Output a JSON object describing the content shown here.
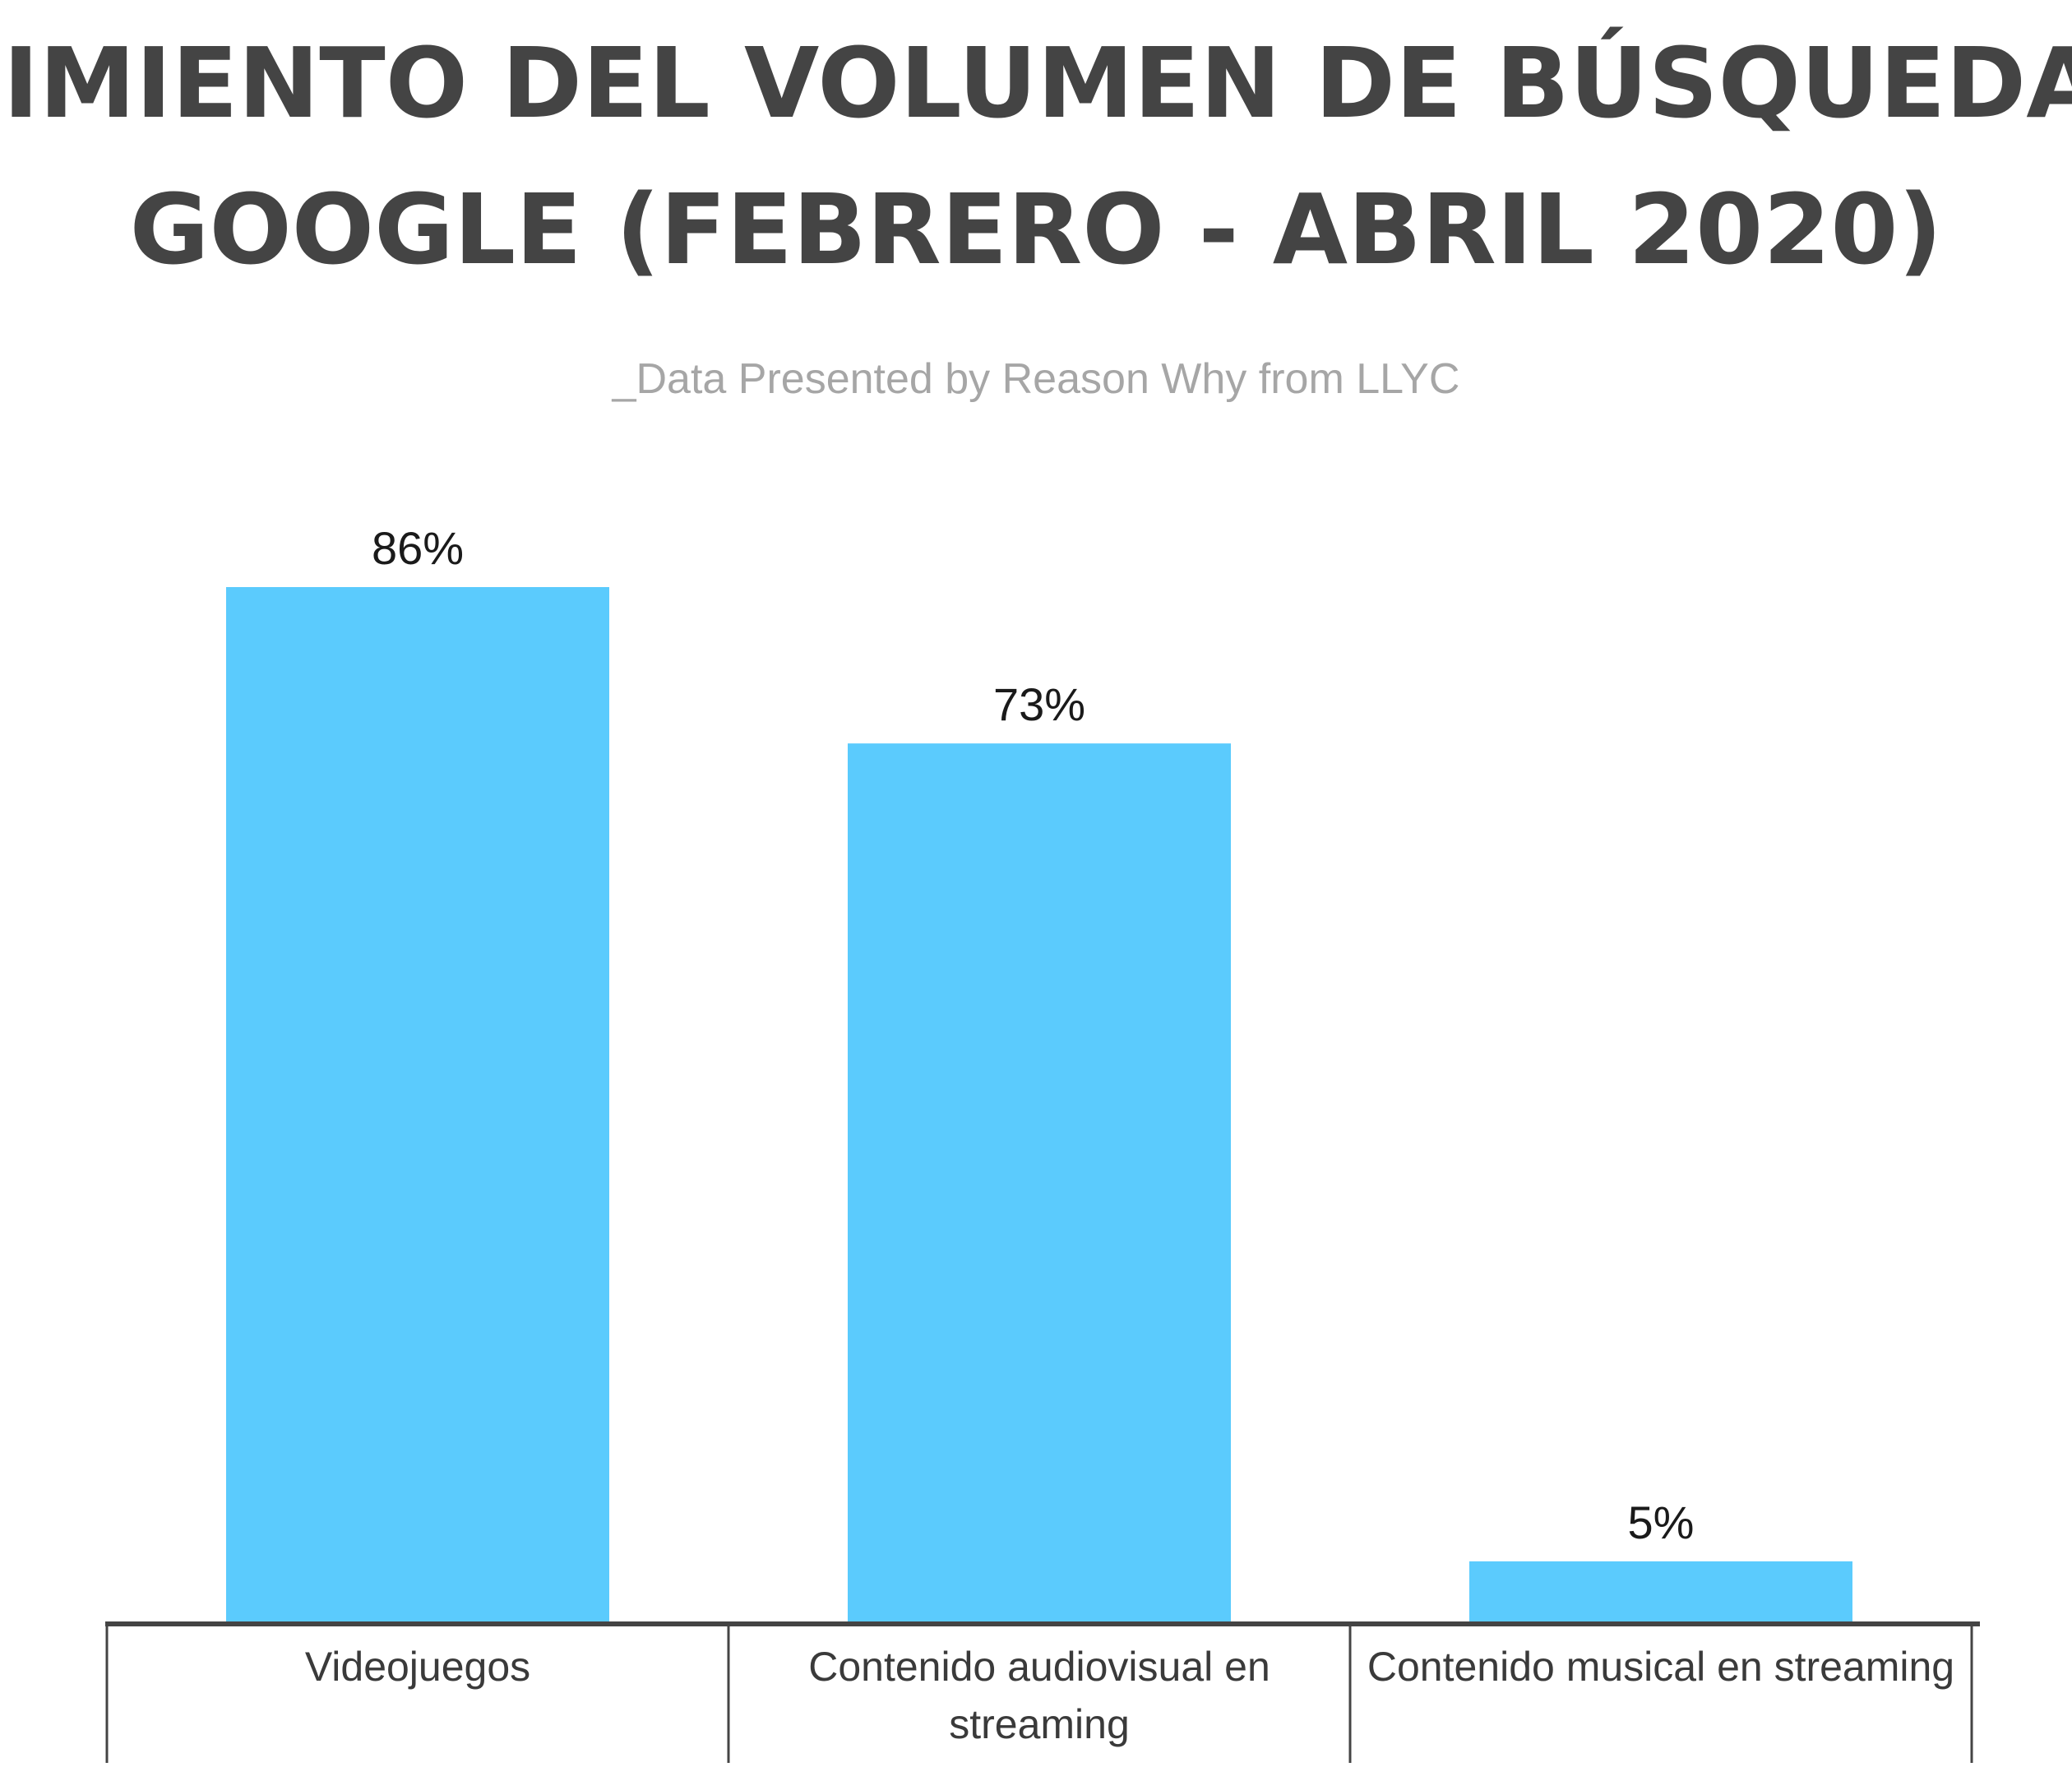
{
  "chart_data": {
    "type": "bar",
    "title_lines": [
      "CRECIMIENTO DEL VOLUMEN DE BÚSQUEDAS EN",
      "GOOGLE (FEBRERO - ABRIL 2020)"
    ],
    "subtitle": "_Data Presented by Reason Why from LLYC",
    "categories": [
      [
        "Videojuegos"
      ],
      [
        "Contenido audiovisual en",
        "streaming"
      ],
      [
        "Contenido musical en streaming"
      ]
    ],
    "values": [
      86,
      73,
      5
    ],
    "data_labels": [
      "86%",
      "73%",
      "5%"
    ],
    "ylim": [
      0,
      86
    ],
    "grid": false,
    "legend": "none",
    "bar_color": "#5bcbfd",
    "axis_color": "#444444",
    "title_color": "#444444",
    "subtitle_color": "#a6a6a6"
  }
}
